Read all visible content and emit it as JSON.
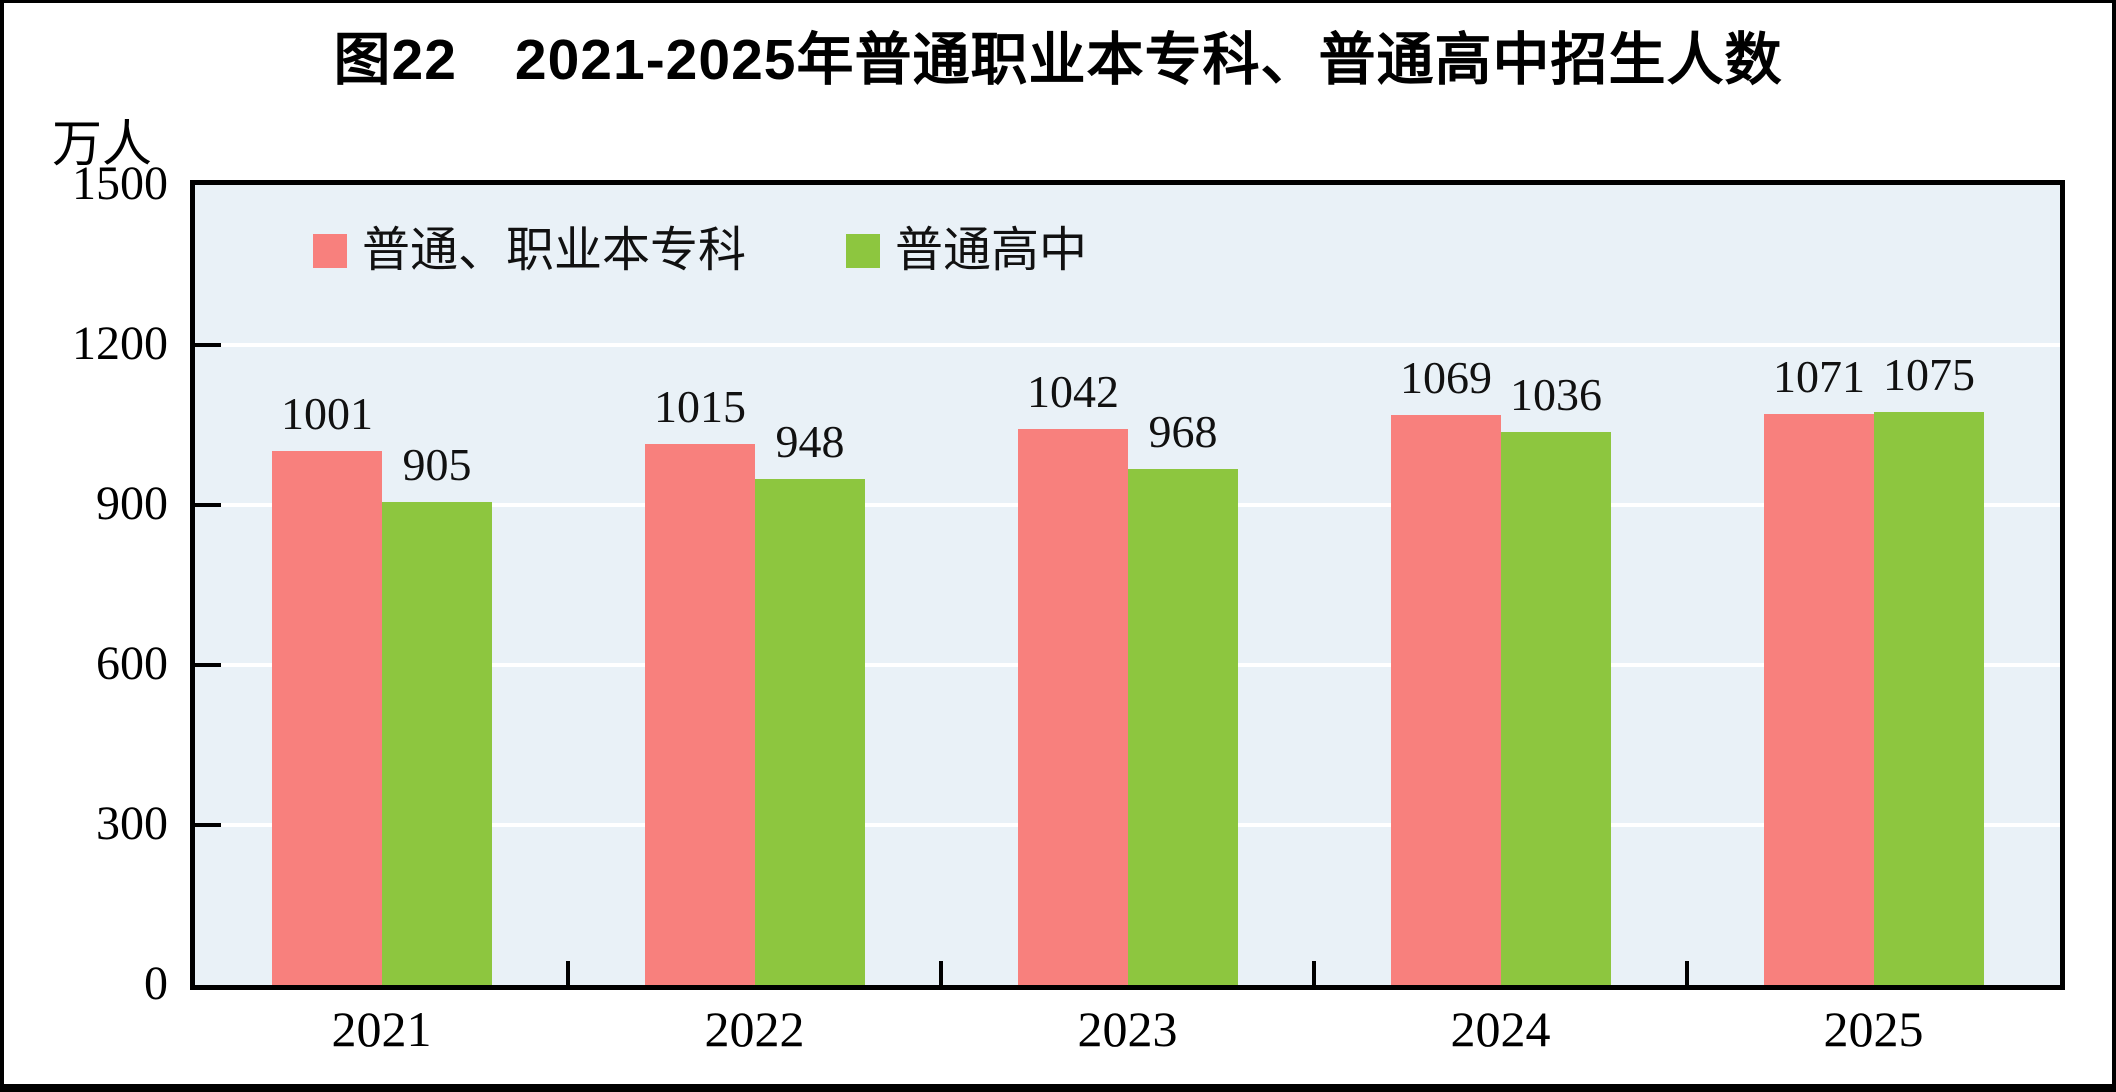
{
  "figure": {
    "title": "图22　2021-2025年普通职业本专科、普通高中招生人数",
    "unit_label": "万人"
  },
  "chart_data": {
    "type": "bar",
    "title": "图22　2021-2025年普通职业本专科、普通高中招生人数",
    "unit": "万人",
    "categories": [
      "2021",
      "2022",
      "2023",
      "2024",
      "2025"
    ],
    "series": [
      {
        "name": "普通、职业本专科",
        "color": "#f8807d",
        "values": [
          1001,
          1015,
          1042,
          1069,
          1071
        ]
      },
      {
        "name": "普通高中",
        "color": "#8dc63f",
        "values": [
          905,
          948,
          968,
          1036,
          1075
        ]
      }
    ],
    "ylim": [
      0,
      1500
    ],
    "yticks": [
      0,
      300,
      600,
      900,
      1200,
      1500
    ],
    "grid": true,
    "gridline_color": "#ffffff",
    "plot_bg": "#e9f1f7",
    "legend_position": "top-left-inside",
    "value_labels": true
  }
}
